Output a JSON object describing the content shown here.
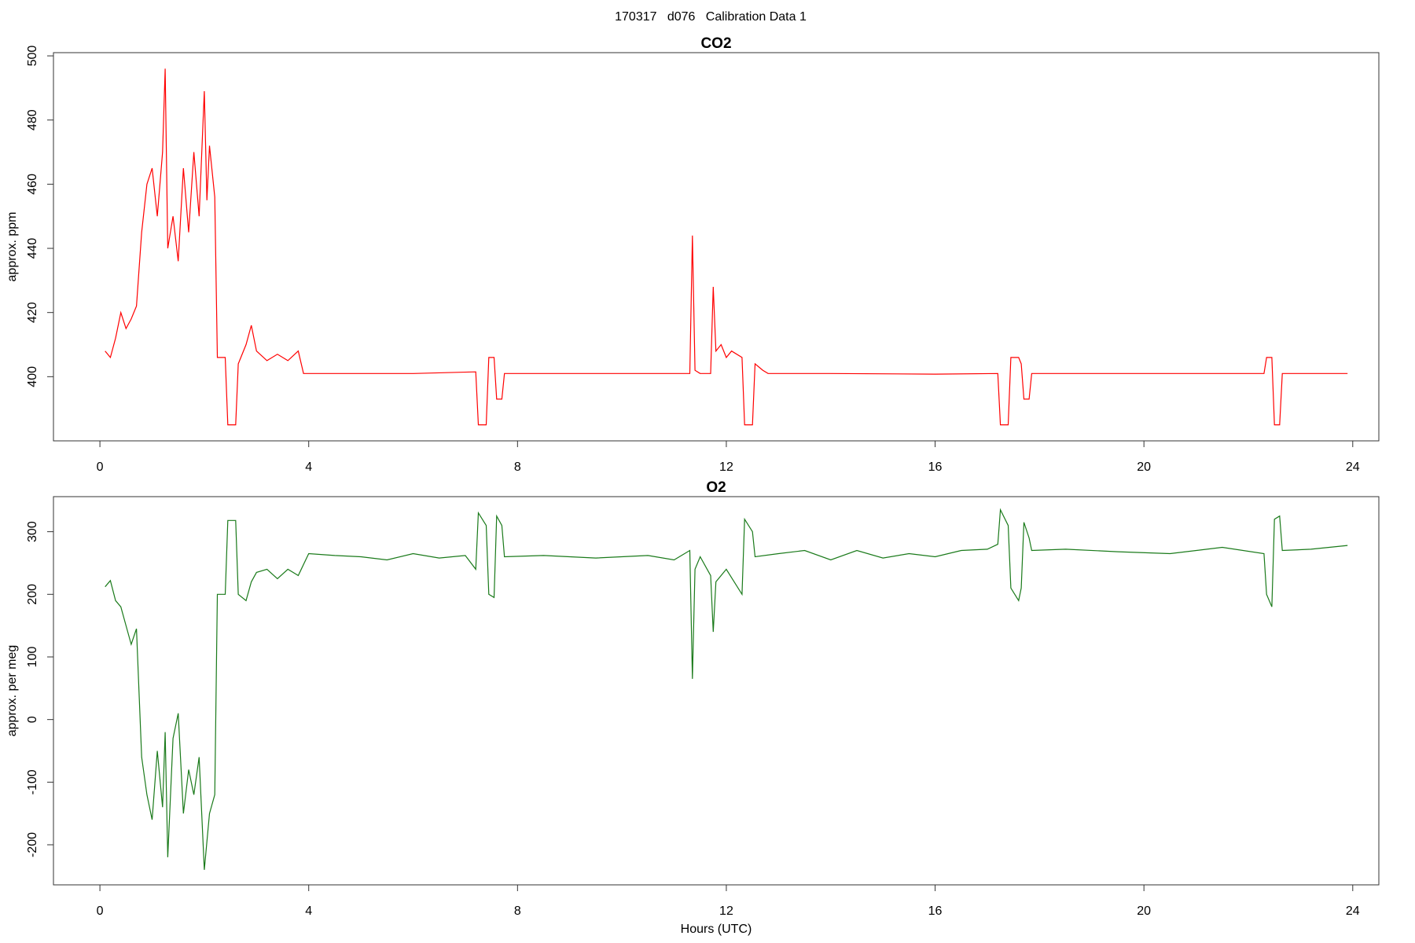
{
  "title": "170317   d076   Calibration Data 1",
  "chart_data": [
    {
      "type": "line",
      "title": "CO2",
      "ylabel": "approx. ppm",
      "color": "#ff0000",
      "x": [
        0.1,
        0.2,
        0.3,
        0.4,
        0.5,
        0.6,
        0.7,
        0.8,
        0.9,
        1.0,
        1.1,
        1.2,
        1.25,
        1.3,
        1.4,
        1.5,
        1.6,
        1.7,
        1.8,
        1.9,
        2.0,
        2.05,
        2.1,
        2.2,
        2.25,
        2.4,
        2.45,
        2.6,
        2.65,
        2.8,
        2.9,
        3.0,
        3.2,
        3.4,
        3.6,
        3.8,
        3.9,
        5,
        6,
        7.2,
        7.25,
        7.4,
        7.45,
        7.55,
        7.6,
        7.7,
        7.75,
        9,
        11.3,
        11.35,
        11.4,
        11.5,
        11.7,
        11.75,
        11.8,
        11.9,
        12.0,
        12.1,
        12.3,
        12.35,
        12.5,
        12.55,
        12.7,
        12.8,
        14,
        16,
        17.2,
        17.25,
        17.4,
        17.45,
        17.6,
        17.65,
        17.7,
        17.8,
        17.85,
        20,
        22.3,
        22.35,
        22.45,
        22.5,
        22.6,
        22.65,
        23.9
      ],
      "values": [
        408,
        406,
        412,
        420,
        415,
        418,
        422,
        445,
        460,
        465,
        450,
        470,
        496,
        440,
        450,
        436,
        465,
        445,
        470,
        450,
        489,
        455,
        472,
        456,
        406,
        406,
        385,
        385,
        404,
        410,
        416,
        408,
        405,
        407,
        405,
        408,
        401,
        401,
        401,
        401.5,
        385,
        385,
        406,
        406,
        393,
        393,
        401,
        401,
        401,
        444,
        402,
        401,
        401,
        428,
        408,
        410,
        406,
        408,
        406,
        385,
        385,
        404,
        402,
        401,
        401,
        400.8,
        401,
        385,
        385,
        406,
        406,
        404,
        393,
        393,
        401,
        401,
        401,
        406,
        406,
        385,
        385,
        401,
        401
      ],
      "xlim": [
        -0.89,
        24.5
      ],
      "xticks": [
        0,
        4,
        8,
        12,
        16,
        20,
        24
      ],
      "ylim": [
        380,
        501
      ],
      "yticks": [
        400,
        420,
        440,
        460,
        480,
        500
      ]
    },
    {
      "type": "line",
      "title": "O2",
      "ylabel": "approx. per meg",
      "xlabel": "Hours (UTC)",
      "color": "#1a7a1a",
      "x": [
        0.1,
        0.2,
        0.3,
        0.4,
        0.5,
        0.6,
        0.7,
        0.8,
        0.9,
        1.0,
        1.1,
        1.2,
        1.25,
        1.3,
        1.4,
        1.5,
        1.6,
        1.7,
        1.8,
        1.9,
        2.0,
        2.1,
        2.2,
        2.25,
        2.4,
        2.45,
        2.6,
        2.65,
        2.8,
        2.9,
        3.0,
        3.2,
        3.4,
        3.6,
        3.8,
        4.0,
        4.5,
        5,
        5.5,
        6,
        6.5,
        7.0,
        7.2,
        7.25,
        7.4,
        7.45,
        7.55,
        7.6,
        7.7,
        7.75,
        8.5,
        9.5,
        10.5,
        11.0,
        11.3,
        11.35,
        11.4,
        11.5,
        11.7,
        11.75,
        11.8,
        12.0,
        12.3,
        12.35,
        12.5,
        12.55,
        13,
        13.5,
        14,
        14.5,
        15,
        15.5,
        16,
        16.5,
        17.0,
        17.2,
        17.25,
        17.4,
        17.45,
        17.6,
        17.65,
        17.7,
        17.8,
        17.85,
        18.5,
        19.5,
        20.5,
        21.5,
        22.3,
        22.35,
        22.45,
        22.5,
        22.6,
        22.65,
        23.2,
        23.9
      ],
      "values": [
        212,
        222,
        190,
        180,
        150,
        120,
        145,
        -60,
        -120,
        -160,
        -50,
        -140,
        -20,
        -220,
        -30,
        10,
        -150,
        -80,
        -120,
        -60,
        -240,
        -150,
        -120,
        200,
        200,
        318,
        318,
        200,
        190,
        220,
        235,
        240,
        225,
        240,
        230,
        265,
        262,
        260,
        255,
        265,
        258,
        262,
        240,
        330,
        310,
        200,
        195,
        325,
        310,
        260,
        262,
        258,
        262,
        255,
        270,
        65,
        240,
        260,
        230,
        140,
        220,
        240,
        200,
        320,
        300,
        260,
        265,
        270,
        255,
        270,
        258,
        265,
        260,
        270,
        272,
        280,
        335,
        310,
        210,
        190,
        210,
        315,
        290,
        270,
        272,
        268,
        265,
        275,
        265,
        200,
        180,
        320,
        325,
        270,
        272,
        278
      ],
      "xlim": [
        -0.89,
        24.5
      ],
      "xticks": [
        0,
        4,
        8,
        12,
        16,
        20,
        24
      ],
      "ylim": [
        -264,
        356
      ],
      "yticks": [
        -200,
        -100,
        0,
        100,
        200,
        300
      ]
    }
  ]
}
